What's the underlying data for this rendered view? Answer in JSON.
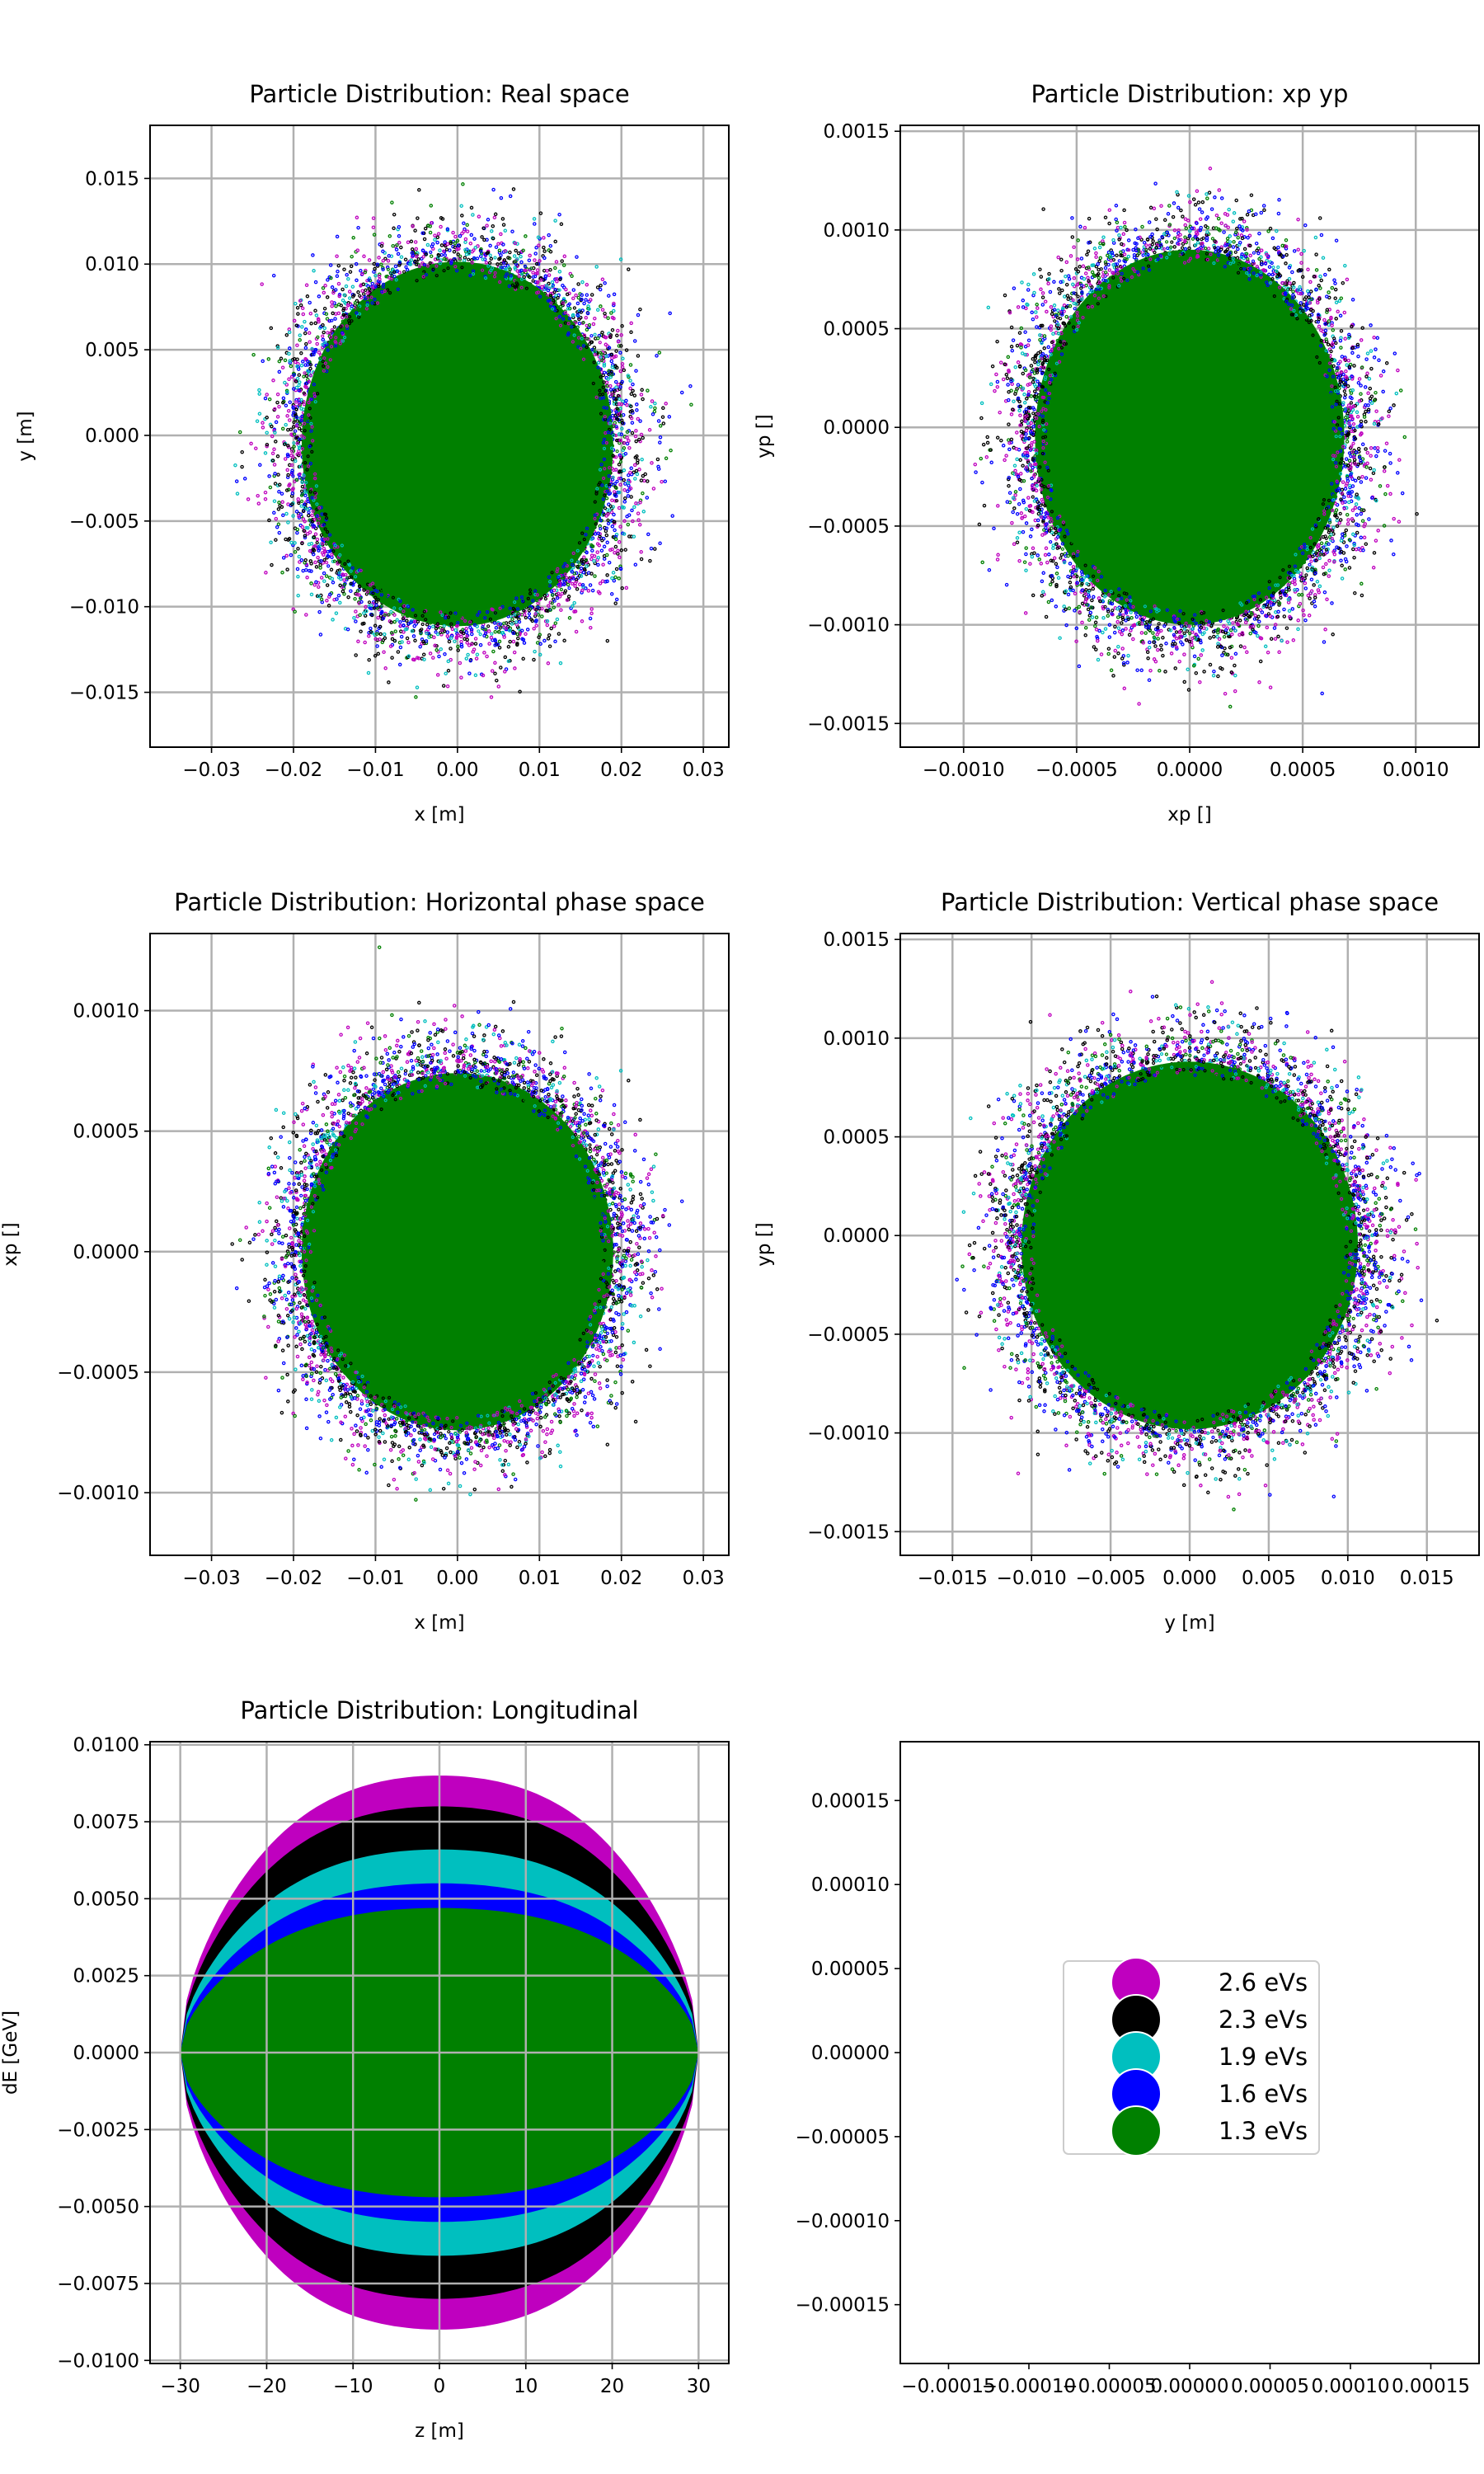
{
  "figure": {
    "background": "#ffffff",
    "grid_color": "#b0b0b0"
  },
  "chart_data": [
    {
      "id": "real",
      "type": "scatter",
      "title": "Particle Distribution: Real space",
      "xlabel": "x [m]",
      "ylabel": "y [m]",
      "xlim": [
        -0.0375,
        0.0331
      ],
      "ylim": [
        -0.0182,
        0.0181
      ],
      "xticks": [
        -0.03,
        -0.02,
        -0.01,
        0.0,
        0.01,
        0.02,
        0.03
      ],
      "xtick_labels": [
        "−0.03",
        "−0.02",
        "−0.01",
        "0.00",
        "0.01",
        "0.02",
        "0.03"
      ],
      "yticks": [
        -0.015,
        -0.01,
        -0.005,
        0.0,
        0.005,
        0.01,
        0.015
      ],
      "ytick_labels": [
        "−0.015",
        "−0.010",
        "−0.005",
        "0.000",
        "0.005",
        "0.010",
        "0.015"
      ],
      "grid": true,
      "cloud": {
        "cx": 0.0,
        "cy": -0.0005,
        "rx": 0.02,
        "ry": 0.0112,
        "sx": 0.003,
        "sy": 0.0017
      }
    },
    {
      "id": "xpyp",
      "type": "scatter",
      "title": "Particle Distribution: xp yp",
      "xlabel": "xp []",
      "ylabel": "yp []",
      "xlim": [
        -0.00128,
        0.00128
      ],
      "ylim": [
        -0.00162,
        0.00153
      ],
      "xticks": [
        -0.001,
        -0.0005,
        0.0,
        0.0005,
        0.001
      ],
      "xtick_labels": [
        "−0.0010",
        "−0.0005",
        "0.0000",
        "0.0005",
        "0.0010"
      ],
      "yticks": [
        -0.0015,
        -0.001,
        -0.0005,
        0.0,
        0.0005,
        0.001,
        0.0015
      ],
      "ytick_labels": [
        "−0.0015",
        "−0.0010",
        "−0.0005",
        "0.0000",
        "0.0005",
        "0.0010",
        "0.0015"
      ],
      "grid": true,
      "cloud": {
        "cx": 0.0,
        "cy": -5e-05,
        "rx": 0.00072,
        "ry": 0.001,
        "sx": 9e-05,
        "sy": 0.00012
      }
    },
    {
      "id": "hphase",
      "type": "scatter",
      "title": "Particle Distribution: Horizontal phase space",
      "xlabel": "x [m]",
      "ylabel": "xp []",
      "xlim": [
        -0.0375,
        0.0331
      ],
      "ylim": [
        -0.00126,
        0.00132
      ],
      "xticks": [
        -0.03,
        -0.02,
        -0.01,
        0.0,
        0.01,
        0.02,
        0.03
      ],
      "xtick_labels": [
        "−0.03",
        "−0.02",
        "−0.01",
        "0.00",
        "0.01",
        "0.02",
        "0.03"
      ],
      "yticks": [
        -0.001,
        -0.0005,
        0.0,
        0.0005,
        0.001
      ],
      "ytick_labels": [
        "−0.0010",
        "−0.0005",
        "0.0000",
        "0.0005",
        "0.0010"
      ],
      "grid": true,
      "cloud": {
        "cx": 0.0,
        "cy": 0.0,
        "rx": 0.02,
        "ry": 0.00078,
        "sx": 0.003,
        "sy": 0.00011
      }
    },
    {
      "id": "vphase",
      "type": "scatter",
      "title": "Particle Distribution: Vertical phase space",
      "xlabel": "y [m]",
      "ylabel": "yp []",
      "xlim": [
        -0.0183,
        0.0183
      ],
      "ylim": [
        -0.00162,
        0.00153
      ],
      "xticks": [
        -0.015,
        -0.01,
        -0.005,
        0.0,
        0.005,
        0.01,
        0.015
      ],
      "xtick_labels": [
        "−0.015",
        "−0.010",
        "−0.005",
        "0.000",
        "0.005",
        "0.010",
        "0.015"
      ],
      "yticks": [
        -0.0015,
        -0.001,
        -0.0005,
        0.0,
        0.0005,
        0.001,
        0.0015
      ],
      "ytick_labels": [
        "−0.0015",
        "−0.0010",
        "−0.0005",
        "0.0000",
        "0.0005",
        "0.0010",
        "0.0015"
      ],
      "grid": true,
      "cloud": {
        "cx": 0.0,
        "cy": -5e-05,
        "rx": 0.0112,
        "ry": 0.00098,
        "sx": 0.0017,
        "sy": 0.00012
      }
    },
    {
      "id": "longitudinal",
      "type": "area",
      "title": "Particle Distribution: Longitudinal",
      "xlabel": "z [m]",
      "ylabel": "dE [GeV]",
      "xlim": [
        -33.5,
        33.5
      ],
      "ylim": [
        -0.0101,
        0.0101
      ],
      "xticks": [
        -30,
        -20,
        -10,
        0,
        10,
        20,
        30
      ],
      "xtick_labels": [
        "−30",
        "−20",
        "−10",
        "0",
        "10",
        "20",
        "30"
      ],
      "yticks": [
        -0.01,
        -0.0075,
        -0.005,
        -0.0025,
        0.0,
        0.0025,
        0.005,
        0.0075,
        0.01
      ],
      "ytick_labels": [
        "−0.0100",
        "−0.0075",
        "−0.0050",
        "−0.0025",
        "0.0000",
        "0.0025",
        "0.0050",
        "0.0075",
        "0.0100"
      ],
      "grid": true,
      "z_half_length": 30,
      "series": [
        {
          "name": "2.6 eVs",
          "color": "#bf00bf",
          "peak_dE": 0.009
        },
        {
          "name": "2.3 eVs",
          "color": "#000000",
          "peak_dE": 0.008
        },
        {
          "name": "1.9 eVs",
          "color": "#00bfbf",
          "peak_dE": 0.0066
        },
        {
          "name": "1.6 eVs",
          "color": "#0000ff",
          "peak_dE": 0.0055
        },
        {
          "name": "1.3 eVs",
          "color": "#008000",
          "peak_dE": 0.0047
        }
      ]
    },
    {
      "id": "legend-panel",
      "type": "scatter",
      "title": "",
      "xlabel": "",
      "ylabel": "",
      "xlim": [
        -0.00018,
        0.00018
      ],
      "ylim": [
        -0.000185,
        0.000185
      ],
      "xticks": [
        -0.00015,
        -0.0001,
        -5e-05,
        0.0,
        5e-05,
        0.0001,
        0.00015
      ],
      "xtick_labels": [
        "−0.00015",
        "−0.00010",
        "−0.00005",
        "0.00000",
        "0.00005",
        "0.00010",
        "0.00015"
      ],
      "yticks": [
        -0.00015,
        -0.0001,
        -5e-05,
        0.0,
        5e-05,
        0.0001,
        0.00015
      ],
      "ytick_labels": [
        "−0.00015",
        "−0.00010",
        "−0.00005",
        "0.00000",
        "0.00005",
        "0.00010",
        "0.00015"
      ],
      "grid": false,
      "legend": {
        "placement": "center",
        "entries": [
          {
            "label": "2.6 eVs",
            "color": "#bf00bf"
          },
          {
            "label": "2.3 eVs",
            "color": "#000000"
          },
          {
            "label": "1.9 eVs",
            "color": "#00bfbf"
          },
          {
            "label": "1.6 eVs",
            "color": "#0000ff"
          },
          {
            "label": "1.3 eVs",
            "color": "#008000"
          }
        ]
      }
    }
  ]
}
